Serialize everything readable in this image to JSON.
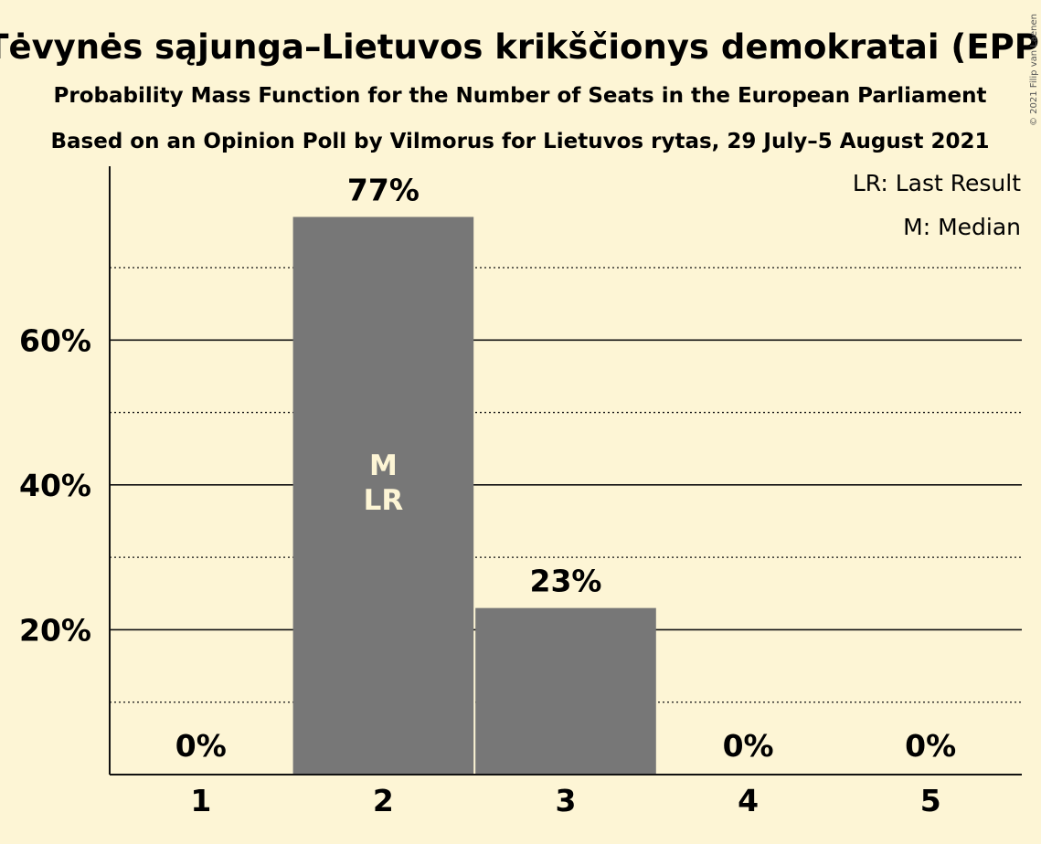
{
  "chart_data": {
    "type": "bar",
    "title": "Tėvynės sąjunga–Lietuvos krikščionys demokratai (EPP)",
    "subtitle_1": "Probability Mass Function for the Number of Seats in the European Parliament",
    "subtitle_2": "Based on an Opinion Poll by Vilmorus for Lietuvos rytas, 29 July–5 August 2021",
    "categories": [
      "1",
      "2",
      "3",
      "4",
      "5"
    ],
    "values": [
      0,
      77,
      23,
      0,
      0
    ],
    "data_labels": [
      "0%",
      "77%",
      "23%",
      "0%",
      "0%"
    ],
    "ylim": [
      0,
      84
    ],
    "yticks": [
      20,
      40,
      60
    ],
    "ytick_labels": [
      "20%",
      "40%",
      "60%"
    ],
    "minor_gridlines": [
      10,
      30,
      50,
      70
    ],
    "bar_color": "#777777",
    "median_category": "2",
    "last_result_category": "2",
    "median_marker": "M",
    "last_result_marker": "LR",
    "legend": {
      "placement": "top-right",
      "entries": [
        "LR: Last Result",
        "M: Median"
      ]
    },
    "copyright": "© 2021 Filip van Laenen"
  }
}
